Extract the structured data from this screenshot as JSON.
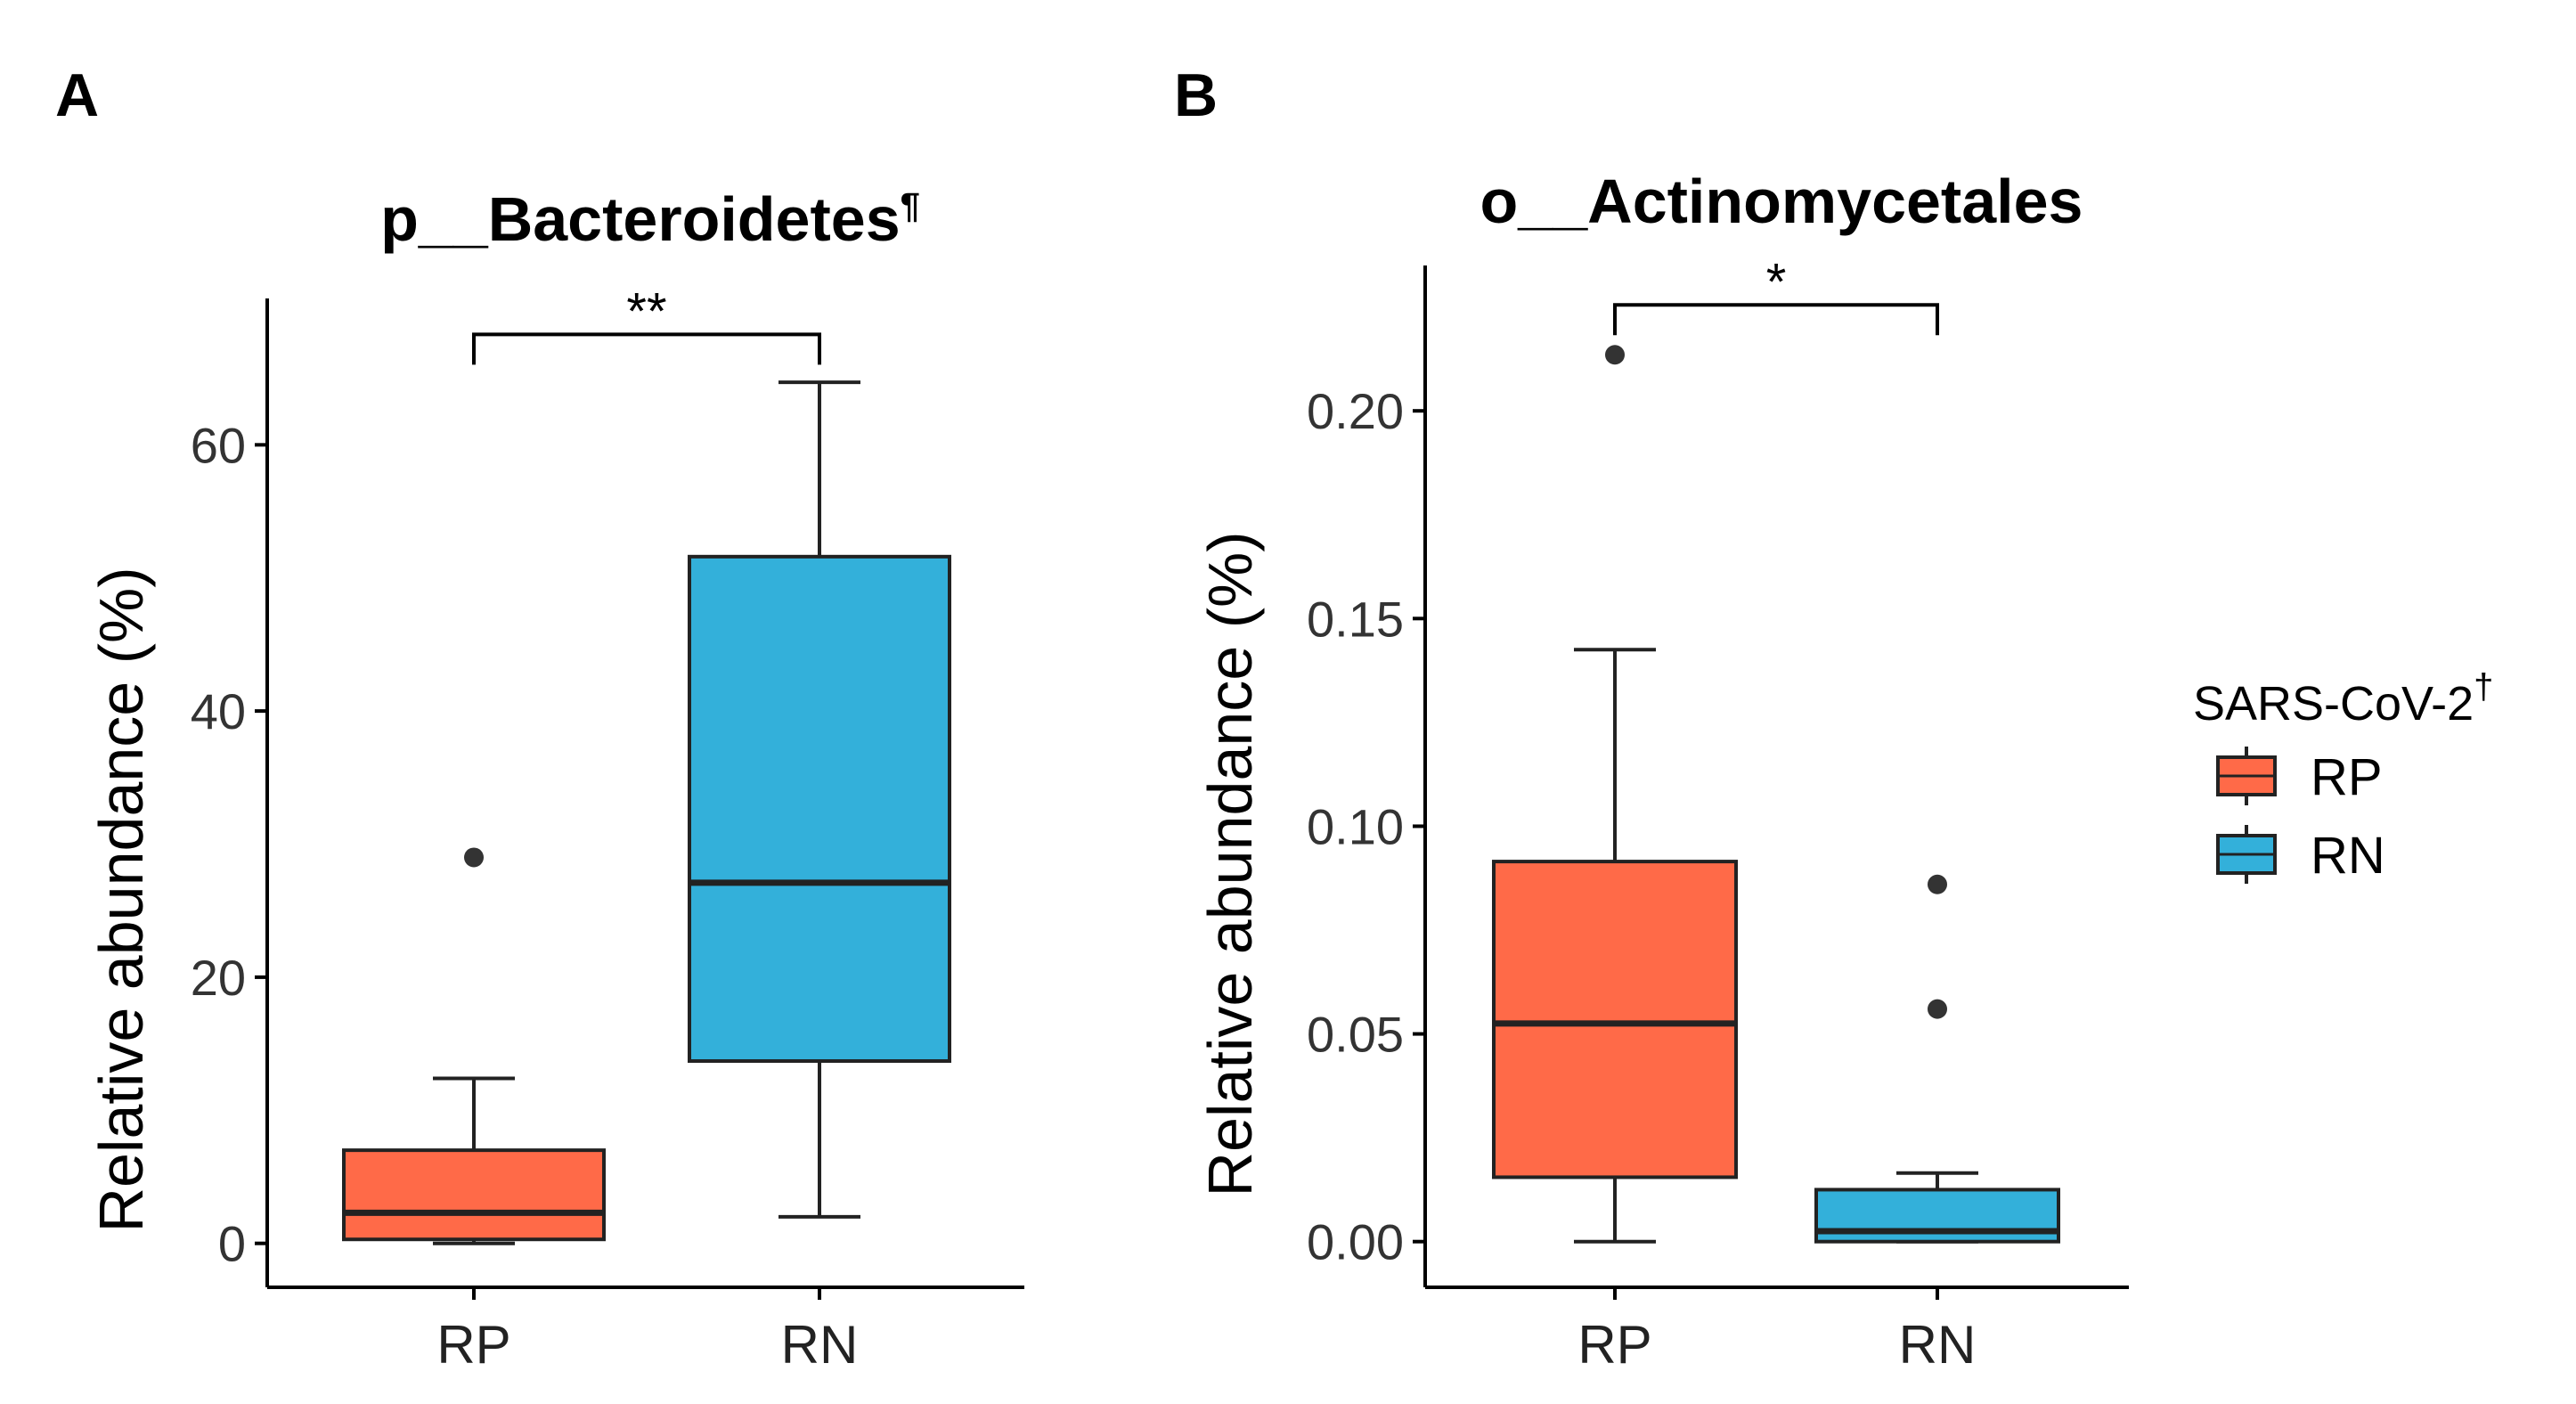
{
  "figure": {
    "legend": {
      "title": "SARS-CoV-2",
      "title_sup": "†",
      "items": [
        {
          "label": "RP",
          "color": "#FF6A48"
        },
        {
          "label": "RN",
          "color": "#33B0DA"
        }
      ]
    }
  },
  "chart_data": [
    {
      "type": "box",
      "panel": "A",
      "title": "p__Bacteroidetes",
      "title_sup": "¶",
      "xlabel": "",
      "ylabel": "Relative abundance (%)",
      "ylim": [
        -3.3,
        71
      ],
      "yticks": [
        0,
        20,
        40,
        60
      ],
      "ytick_labels": [
        "0",
        "20",
        "40",
        "60"
      ],
      "categories": [
        "RP",
        "RN"
      ],
      "series": [
        {
          "name": "RP",
          "color": "#FF6A48",
          "whisker_low": 0,
          "q1": 0.3,
          "median": 2.3,
          "q3": 7.0,
          "whisker_high": 12.4,
          "outliers": [
            29
          ]
        },
        {
          "name": "RN",
          "color": "#33B0DA",
          "whisker_low": 2.0,
          "q1": 13.7,
          "median": 27.1,
          "q3": 51.6,
          "whisker_high": 64.7,
          "outliers": []
        }
      ],
      "significance": {
        "from": "RP",
        "to": "RN",
        "y": 68.3,
        "label": "**"
      }
    },
    {
      "type": "box",
      "panel": "B",
      "title": "o__Actinomycetales",
      "title_sup": "",
      "xlabel": "",
      "ylabel": "Relative abundance (%)",
      "ylim": [
        -0.011,
        0.235
      ],
      "yticks": [
        0,
        0.05,
        0.1,
        0.15,
        0.2
      ],
      "ytick_labels": [
        "0.00",
        "0.05",
        "0.10",
        "0.15",
        "0.20"
      ],
      "categories": [
        "RP",
        "RN"
      ],
      "series": [
        {
          "name": "RP",
          "color": "#FF6A48",
          "whisker_low": 0,
          "q1": 0.0155,
          "median": 0.0525,
          "q3": 0.0915,
          "whisker_high": 0.1425,
          "outliers": [
            0.2135
          ]
        },
        {
          "name": "RN",
          "color": "#33B0DA",
          "whisker_low": 0,
          "q1": 0,
          "median": 0.0025,
          "q3": 0.0125,
          "whisker_high": 0.0165,
          "outliers": [
            0.056,
            0.086
          ]
        }
      ],
      "significance": {
        "from": "RP",
        "to": "RN",
        "y": 0.2255,
        "label": "*"
      }
    }
  ]
}
